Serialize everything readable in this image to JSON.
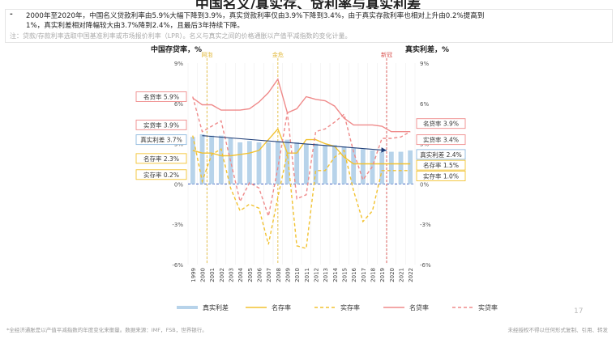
{
  "slide": {
    "title": "中国名义/真实存、贷利率与真实利差",
    "bullet_mark": "-",
    "note1": "2000年至2020年，中国名义贷款利率由5.9%大幅下降到3.9%，真实贷款利率仅由3.9%下降到3.4%，由于真实存款利率也相对上升由0.2%提高到",
    "note2": "1%，真实利差相对降幅较大由3.7%降到2.4%，且最后3年持续下降。",
    "note3": "注：贷款/存款利率选取中国基准利率或市场报价利率（LPR）。名义与真实之间的价格通胀以产值平减指数的变化计量。",
    "footer_left": "*全经济通胀是以产值平减指数的年度变化来衡量。数据来源：IMF，FSB，世界银行。",
    "footer_right": "未经授权不得以任何形式复制、引用、转发",
    "page_number": "17"
  },
  "chart_data": {
    "type": "line",
    "left_axis_title": "中国存贷率，%",
    "right_axis_title": "真实利差，%",
    "ylim": [
      -6,
      9
    ],
    "yticks": [
      "9%",
      "6%",
      "3%",
      "0%",
      "-3%",
      "-6%"
    ],
    "right_yticks": [
      "9%",
      "6%",
      "3%",
      "0%",
      "-3%",
      "-6%"
    ],
    "categories": [
      "1999",
      "2000",
      "2001",
      "2002",
      "2003",
      "2004",
      "2005",
      "2006",
      "2007",
      "2008",
      "2009",
      "2010",
      "2011",
      "2012",
      "2013",
      "2014",
      "2015",
      "2016",
      "2017",
      "2018",
      "2019",
      "2020",
      "2021",
      "2022"
    ],
    "events": [
      {
        "label": "网泡",
        "index": 1.5
      },
      {
        "label": "金危",
        "index": 9
      },
      {
        "label": "新冠",
        "index": 20.5
      }
    ],
    "series": [
      {
        "name": "真实利差",
        "type": "bar",
        "color": "#b7d3ea",
        "values": [
          3.5,
          3.7,
          3.6,
          3.6,
          3.4,
          3.1,
          3.2,
          3.1,
          3.1,
          3.2,
          3.3,
          3.1,
          3.0,
          3.0,
          2.9,
          2.9,
          2.8,
          2.7,
          2.6,
          2.5,
          2.4,
          2.4,
          2.4,
          2.5
        ]
      },
      {
        "name": "名存率",
        "type": "line",
        "color": "#f2c230",
        "dash": "",
        "values": [
          2.5,
          2.3,
          2.3,
          2.1,
          2.1,
          2.2,
          2.3,
          2.5,
          3.3,
          4.1,
          2.3,
          2.3,
          3.3,
          3.3,
          3.0,
          2.8,
          2.0,
          1.5,
          1.5,
          1.5,
          1.5,
          1.5,
          1.5,
          1.5
        ]
      },
      {
        "name": "实存率",
        "type": "line",
        "color": "#f2c230",
        "dash": "4 3",
        "values": [
          3.6,
          0.2,
          2.2,
          2.6,
          -0.3,
          -2.0,
          -1.5,
          -1.8,
          -4.5,
          -1.0,
          2.3,
          -4.6,
          -4.8,
          1.0,
          1.0,
          2.0,
          2.5,
          -0.5,
          -2.8,
          -2.0,
          1.0,
          1.0,
          1.0,
          1.0
        ]
      },
      {
        "name": "名贷率",
        "type": "line",
        "color": "#ef8a8a",
        "dash": "",
        "values": [
          6.4,
          5.9,
          5.9,
          5.5,
          5.5,
          5.5,
          5.6,
          6.1,
          6.8,
          7.8,
          5.3,
          5.6,
          6.5,
          6.3,
          6.2,
          5.8,
          4.9,
          4.4,
          4.4,
          4.4,
          4.3,
          3.9,
          3.9,
          3.9
        ]
      },
      {
        "name": "实贷率",
        "type": "line",
        "color": "#ef8a8a",
        "dash": "4 3",
        "values": [
          6.5,
          3.9,
          4.3,
          4.7,
          1.7,
          -1.3,
          0.1,
          -0.3,
          -2.4,
          1.2,
          5.3,
          -1.1,
          -0.8,
          3.9,
          4.1,
          4.6,
          5.2,
          2.4,
          0.3,
          1.3,
          3.4,
          3.4,
          3.5,
          3.9
        ]
      }
    ],
    "callouts_left": [
      {
        "label": "名贷率 5.9%",
        "color": "#ef8a8a",
        "y": 6.5
      },
      {
        "label": "实贷率 3.9%",
        "color": "#ef8a8a",
        "y": 4.4
      },
      {
        "label": "真实利差 3.7%",
        "color": "#8cb8dd",
        "y": 3.3
      },
      {
        "label": "名存率 2.3%",
        "color": "#f2c230",
        "y": 1.9
      },
      {
        "label": "实存率 0.2%",
        "color": "#f2c230",
        "y": 0.7
      }
    ],
    "callouts_right": [
      {
        "label": "名贷率 3.9%",
        "color": "#ef8a8a",
        "y": 4.5
      },
      {
        "label": "实贷率 3.4%",
        "color": "#ef8a8a",
        "y": 3.3
      },
      {
        "label": "真实利差 2.4%",
        "color": "#8cb8dd",
        "y": 2.2
      },
      {
        "label": "名存率 1.5%",
        "color": "#f2c230",
        "y": 1.4
      },
      {
        "label": "实存率 1.0%",
        "color": "#f2c230",
        "y": 0.6
      }
    ],
    "trend": {
      "from_index": 1,
      "from_value": 3.6,
      "to_index": 20.5,
      "to_value": 2.5
    },
    "legend": {
      "placement": "bottom",
      "items": [
        "真实利差",
        "名存率",
        "实存率",
        "名贷率",
        "实贷率"
      ]
    }
  }
}
